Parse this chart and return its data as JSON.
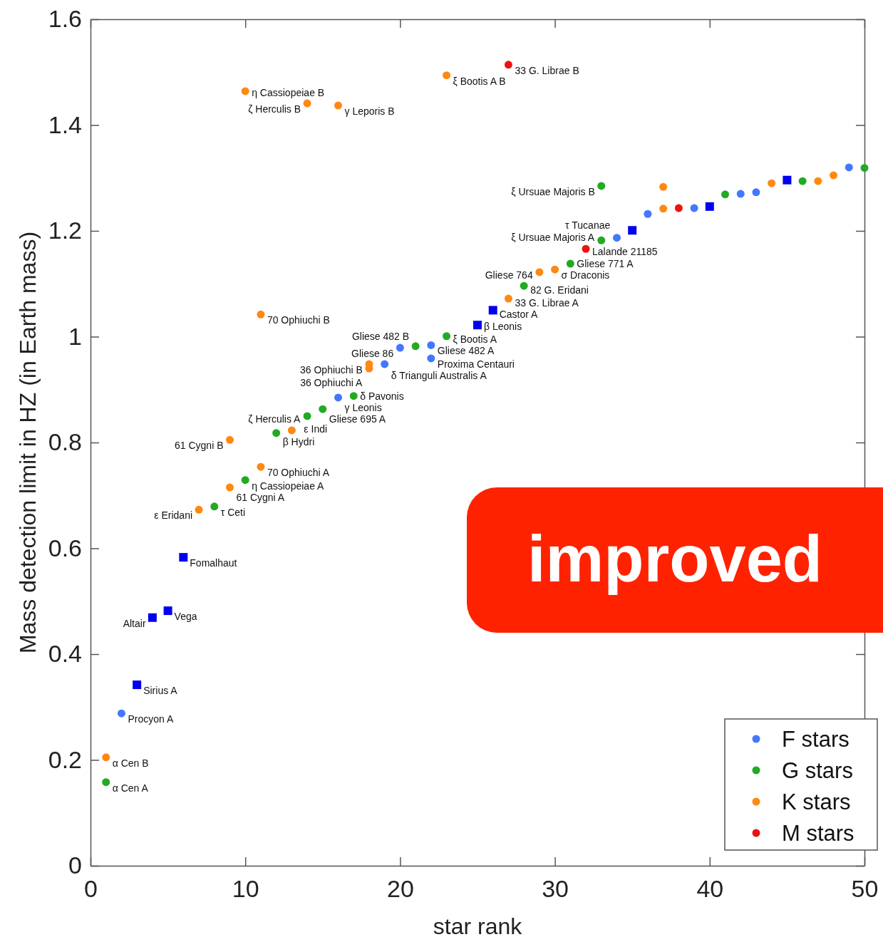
{
  "chart_data": {
    "type": "scatter",
    "xlabel": "star rank",
    "ylabel": "Mass detection limit in HZ (in Earth mass)",
    "xlim": [
      0,
      50
    ],
    "ylim": [
      0,
      1.6
    ],
    "xticks": [
      0,
      10,
      20,
      30,
      40,
      50
    ],
    "yticks": [
      0,
      0.2,
      0.4,
      0.6,
      0.8,
      1,
      1.2,
      1.4,
      1.6
    ],
    "grid": false,
    "legend": "bottom right",
    "marker": "circle",
    "series": [
      {
        "name": "F stars",
        "color": "#4477ff",
        "x": [
          2,
          16,
          20,
          22,
          22,
          34,
          36,
          39,
          43,
          49,
          19,
          42
        ],
        "values": [
          0.288,
          0.885,
          0.979,
          0.984,
          0.959,
          1.187,
          1.232,
          1.243,
          1.273,
          1.32,
          0.948,
          1.27
        ]
      },
      {
        "name": "G stars",
        "color": "#22aa22",
        "x": [
          1,
          8,
          10,
          17,
          23,
          28,
          33,
          33,
          41,
          46,
          50,
          12,
          14,
          15,
          21,
          31
        ],
        "values": [
          0.158,
          0.679,
          0.729,
          0.888,
          1.001,
          1.096,
          1.182,
          1.285,
          1.269,
          1.294,
          1.319,
          0.818,
          0.85,
          0.863,
          0.982,
          1.138
        ]
      },
      {
        "name": "K stars",
        "color": "#ff8811",
        "x": [
          1,
          7,
          9,
          9,
          11,
          11,
          10,
          14,
          16,
          13,
          18,
          18,
          23,
          27,
          29,
          30,
          37,
          37,
          44,
          47,
          48
        ],
        "values": [
          0.205,
          0.673,
          0.715,
          0.805,
          0.754,
          1.042,
          1.464,
          1.441,
          1.437,
          0.823,
          0.948,
          0.94,
          1.494,
          1.072,
          1.122,
          1.127,
          1.283,
          1.242,
          1.29,
          1.294,
          1.305
        ]
      },
      {
        "name": "M stars",
        "color": "#ee1111",
        "x": [
          27,
          32,
          38
        ],
        "values": [
          1.514,
          1.166,
          1.243
        ]
      },
      {
        "color": "#0000ee",
        "marker": "square",
        "x": [
          3,
          4,
          5,
          6,
          25,
          26,
          35,
          40,
          45
        ],
        "values": [
          0.342,
          0.469,
          0.482,
          0.583,
          1.022,
          1.05,
          1.201,
          1.246,
          1.296
        ]
      }
    ],
    "annotations": [
      {
        "text": "η Cassiopeiae B",
        "x": 10,
        "y": 1.464
      },
      {
        "text": "ζ Herculis B",
        "x": 14,
        "y": 1.441
      },
      {
        "text": "γ Leporis B",
        "x": 16,
        "y": 1.437
      },
      {
        "text": "ξ Bootis A B",
        "x": 23,
        "y": 1.494
      },
      {
        "text": "33 G. Librae B",
        "x": 27,
        "y": 1.514
      },
      {
        "text": "ξ Ursuae Majoris B",
        "x": 33,
        "y": 1.285
      },
      {
        "text": "70 Ophiuchi B",
        "x": 11,
        "y": 1.042
      },
      {
        "text": "36 Ophiuchi B",
        "x": 18,
        "y": 0.948
      },
      {
        "text": "Gliese 482 B",
        "x": 21,
        "y": 0.982
      },
      {
        "text": "Gliese 86",
        "x": 20,
        "y": 0.979
      },
      {
        "text": "Gliese 482 A",
        "x": 22,
        "y": 0.984
      },
      {
        "text": "ξ Bootis A",
        "x": 23,
        "y": 1.001
      },
      {
        "text": "Proxima Centauri",
        "x": 22,
        "y": 0.959
      },
      {
        "text": "β Leonis",
        "x": 25,
        "y": 1.022
      },
      {
        "text": "Castor A",
        "x": 26,
        "y": 1.05
      },
      {
        "text": "33 G. Librae A",
        "x": 27,
        "y": 1.072
      },
      {
        "text": "82 G. Eridani",
        "x": 28,
        "y": 1.096
      },
      {
        "text": "Gliese 764",
        "x": 29,
        "y": 1.122
      },
      {
        "text": "σ Draconis",
        "x": 30,
        "y": 1.127
      },
      {
        "text": "Gliese 771 A",
        "x": 31,
        "y": 1.138
      },
      {
        "text": "Lalande 21185",
        "x": 32,
        "y": 1.166
      },
      {
        "text": "ξ Ursuae Majoris A",
        "x": 33,
        "y": 1.182
      },
      {
        "text": "τ Tucanae",
        "x": 34,
        "y": 1.187
      },
      {
        "text": "δ Trianguli Australis A",
        "x": 19,
        "y": 0.948
      },
      {
        "text": "36 Ophiuchi A",
        "x": 18,
        "y": 0.94
      },
      {
        "text": "γ Leonis",
        "x": 16,
        "y": 0.885
      },
      {
        "text": "δ Pavonis",
        "x": 17,
        "y": 0.888
      },
      {
        "text": "Gliese 695 A",
        "x": 15,
        "y": 0.863
      },
      {
        "text": "ζ Herculis A",
        "x": 14,
        "y": 0.85
      },
      {
        "text": "β Hydri",
        "x": 12,
        "y": 0.818
      },
      {
        "text": "ε Indi",
        "x": 13,
        "y": 0.823
      },
      {
        "text": "70 Ophiuchi A",
        "x": 11,
        "y": 0.754
      },
      {
        "text": "η Cassiopeiae A",
        "x": 10,
        "y": 0.729
      },
      {
        "text": "61 Cygni A",
        "x": 9,
        "y": 0.715
      },
      {
        "text": "τ Ceti",
        "x": 8,
        "y": 0.679
      },
      {
        "text": "ε Eridani",
        "x": 7,
        "y": 0.673
      },
      {
        "text": "61 Cygni B",
        "x": 9,
        "y": 0.805
      },
      {
        "text": "Fomalhaut",
        "x": 6,
        "y": 0.583
      },
      {
        "text": "Vega",
        "x": 5,
        "y": 0.482
      },
      {
        "text": "Altair",
        "x": 4,
        "y": 0.469
      },
      {
        "text": "Sirius A",
        "x": 3,
        "y": 0.342
      },
      {
        "text": "Procyon A",
        "x": 2,
        "y": 0.288
      },
      {
        "text": "α Cen B",
        "x": 1,
        "y": 0.205
      },
      {
        "text": "α Cen A",
        "x": 1,
        "y": 0.158
      },
      "improved"
    ]
  }
}
